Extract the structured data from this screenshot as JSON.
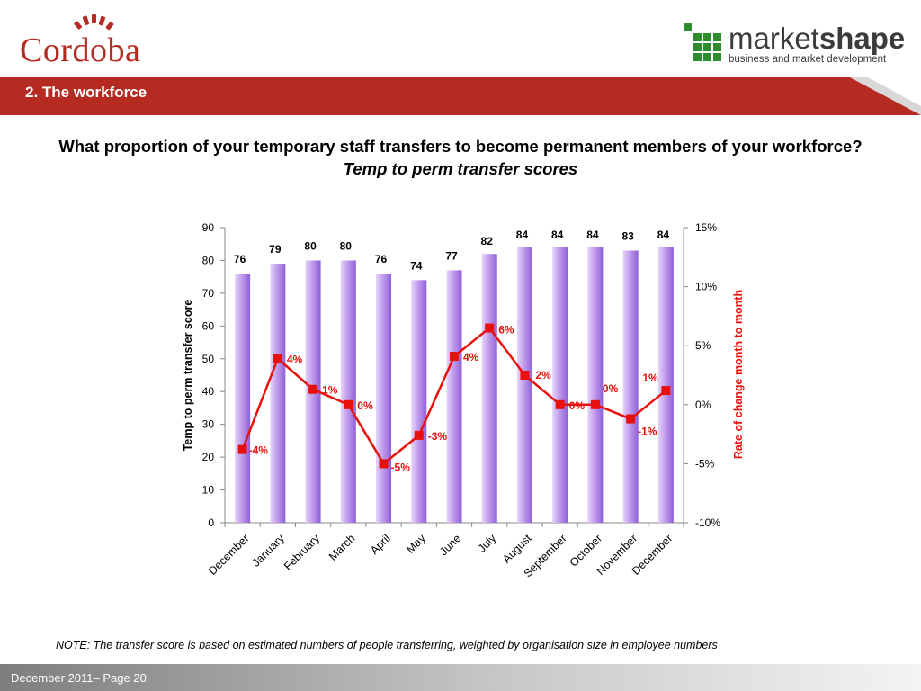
{
  "branding": {
    "left_logo_text": "Cordoba",
    "right_logo_word_light": "market",
    "right_logo_word_bold": "shape",
    "right_logo_tagline": "business and market development"
  },
  "header": {
    "section_title": "2.  The workforce"
  },
  "question": {
    "text": "What proportion of your temporary staff transfers to become permanent members of your workforce?",
    "italic": "Temp to perm transfer scores"
  },
  "chart_data": {
    "type": "bar",
    "categories": [
      "December",
      "January",
      "February",
      "March",
      "April",
      "May",
      "June",
      "July",
      "August",
      "September",
      "October",
      "November",
      "December"
    ],
    "series": [
      {
        "type": "bar",
        "axis": "left",
        "values": [
          76,
          79,
          80,
          80,
          76,
          74,
          77,
          82,
          84,
          84,
          84,
          83,
          84
        ],
        "labels": [
          "76",
          "79",
          "80",
          "80",
          "76",
          "74",
          "77",
          "82",
          "84",
          "84",
          "84",
          "83",
          "84"
        ]
      },
      {
        "type": "line",
        "axis": "right",
        "values": [
          -3.8,
          3.9,
          1.3,
          0.0,
          -5.0,
          -2.6,
          4.1,
          6.5,
          2.5,
          0.0,
          0.0,
          -1.2,
          1.2
        ],
        "labels": [
          "-4%",
          "4%",
          "1%",
          "0%",
          "-5%",
          "-3%",
          "4%",
          "6%",
          "2%",
          "0%",
          "0%",
          "-1%",
          "1%"
        ]
      }
    ],
    "ylabel": "Temp to perm transfer score",
    "ylim": [
      0,
      90
    ],
    "yticks": [
      "0",
      "10",
      "20",
      "30",
      "40",
      "50",
      "60",
      "70",
      "80",
      "90"
    ],
    "y2label": "Rate of change month to month",
    "y2lim": [
      -10,
      15
    ],
    "y2ticks": [
      "-10%",
      "-5%",
      "0%",
      "5%",
      "10%",
      "15%"
    ],
    "grid": false,
    "legend": "none",
    "colors": {
      "bar_light": "#e4d4f8",
      "bar_dark": "#8f5fd8",
      "line": "#e8100b",
      "right_axis_label": "#e8100b"
    }
  },
  "note": "NOTE: The transfer score is based on estimated numbers of people transferring, weighted by organisation size in employee numbers",
  "footer": {
    "text": "December 2011– Page 20"
  }
}
